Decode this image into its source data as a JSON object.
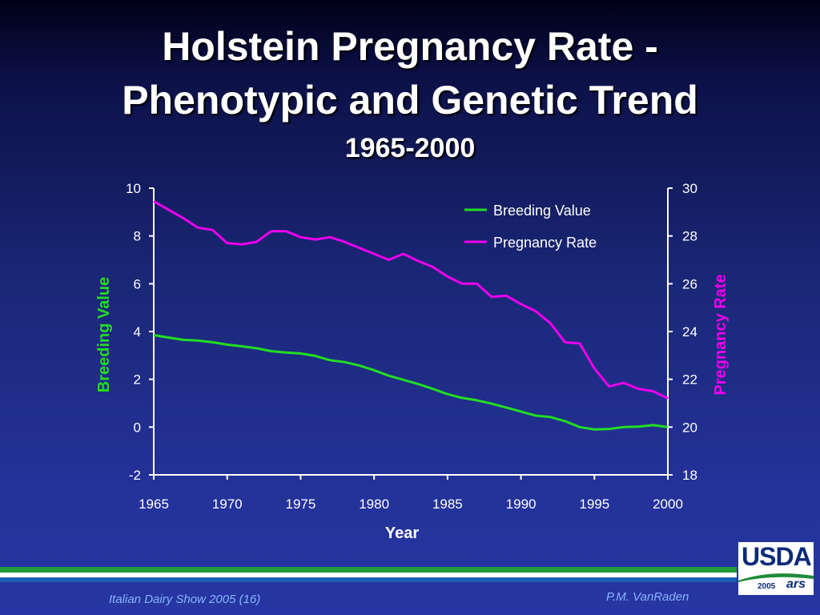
{
  "slide": {
    "title_line1": "Holstein Pregnancy Rate -",
    "title_line2": "Phenotypic and Genetic Trend",
    "subtitle": "1965-2000",
    "footer_left": "Italian Dairy Show 2005 (16)",
    "footer_right": "P.M. VanRaden",
    "logo_text": "USDA",
    "logo_year": "2005",
    "logo_ars": "ars"
  },
  "chart_data": {
    "type": "line",
    "xlabel": "Year",
    "ylabel_left": "Breeding Value",
    "ylabel_right": "Pregnancy Rate",
    "xlim": [
      1965,
      2000
    ],
    "ylim_left": [
      -2,
      10
    ],
    "ylim_right": [
      18,
      30
    ],
    "x_ticks": [
      "1965",
      "1970",
      "1975",
      "1980",
      "1985",
      "1990",
      "1995",
      "2000"
    ],
    "y_ticks_left": [
      "-2",
      "0",
      "2",
      "4",
      "6",
      "8",
      "10"
    ],
    "y_ticks_right": [
      "18",
      "20",
      "22",
      "24",
      "26",
      "28",
      "30"
    ],
    "grid": false,
    "legend_position": "top-right",
    "x": [
      1965,
      1966,
      1967,
      1968,
      1969,
      1970,
      1971,
      1972,
      1973,
      1974,
      1975,
      1976,
      1977,
      1978,
      1979,
      1980,
      1981,
      1982,
      1983,
      1984,
      1985,
      1986,
      1987,
      1988,
      1989,
      1990,
      1991,
      1992,
      1993,
      1994,
      1995,
      1996,
      1997,
      1998,
      1999,
      2000
    ],
    "series": [
      {
        "name": "Breeding Value",
        "axis": "left",
        "color": "#22dd22",
        "values": [
          3.85,
          3.75,
          3.65,
          3.62,
          3.55,
          3.45,
          3.38,
          3.3,
          3.18,
          3.12,
          3.08,
          2.98,
          2.8,
          2.72,
          2.58,
          2.38,
          2.15,
          1.98,
          1.8,
          1.6,
          1.38,
          1.22,
          1.12,
          0.98,
          0.82,
          0.65,
          0.48,
          0.42,
          0.25,
          0.0,
          -0.1,
          -0.08,
          0.0,
          0.02,
          0.08,
          0.0
        ]
      },
      {
        "name": "Pregnancy Rate",
        "axis": "right",
        "color": "#ee00ee",
        "values": [
          29.45,
          29.1,
          28.75,
          28.35,
          28.25,
          27.7,
          27.65,
          27.75,
          28.2,
          28.2,
          27.95,
          27.85,
          27.95,
          27.75,
          27.5,
          27.25,
          27.0,
          27.25,
          26.95,
          26.7,
          26.3,
          26.0,
          26.0,
          25.45,
          25.5,
          25.15,
          24.85,
          24.35,
          23.55,
          23.5,
          22.45,
          21.7,
          21.85,
          21.6,
          21.5,
          21.2
        ]
      }
    ]
  }
}
